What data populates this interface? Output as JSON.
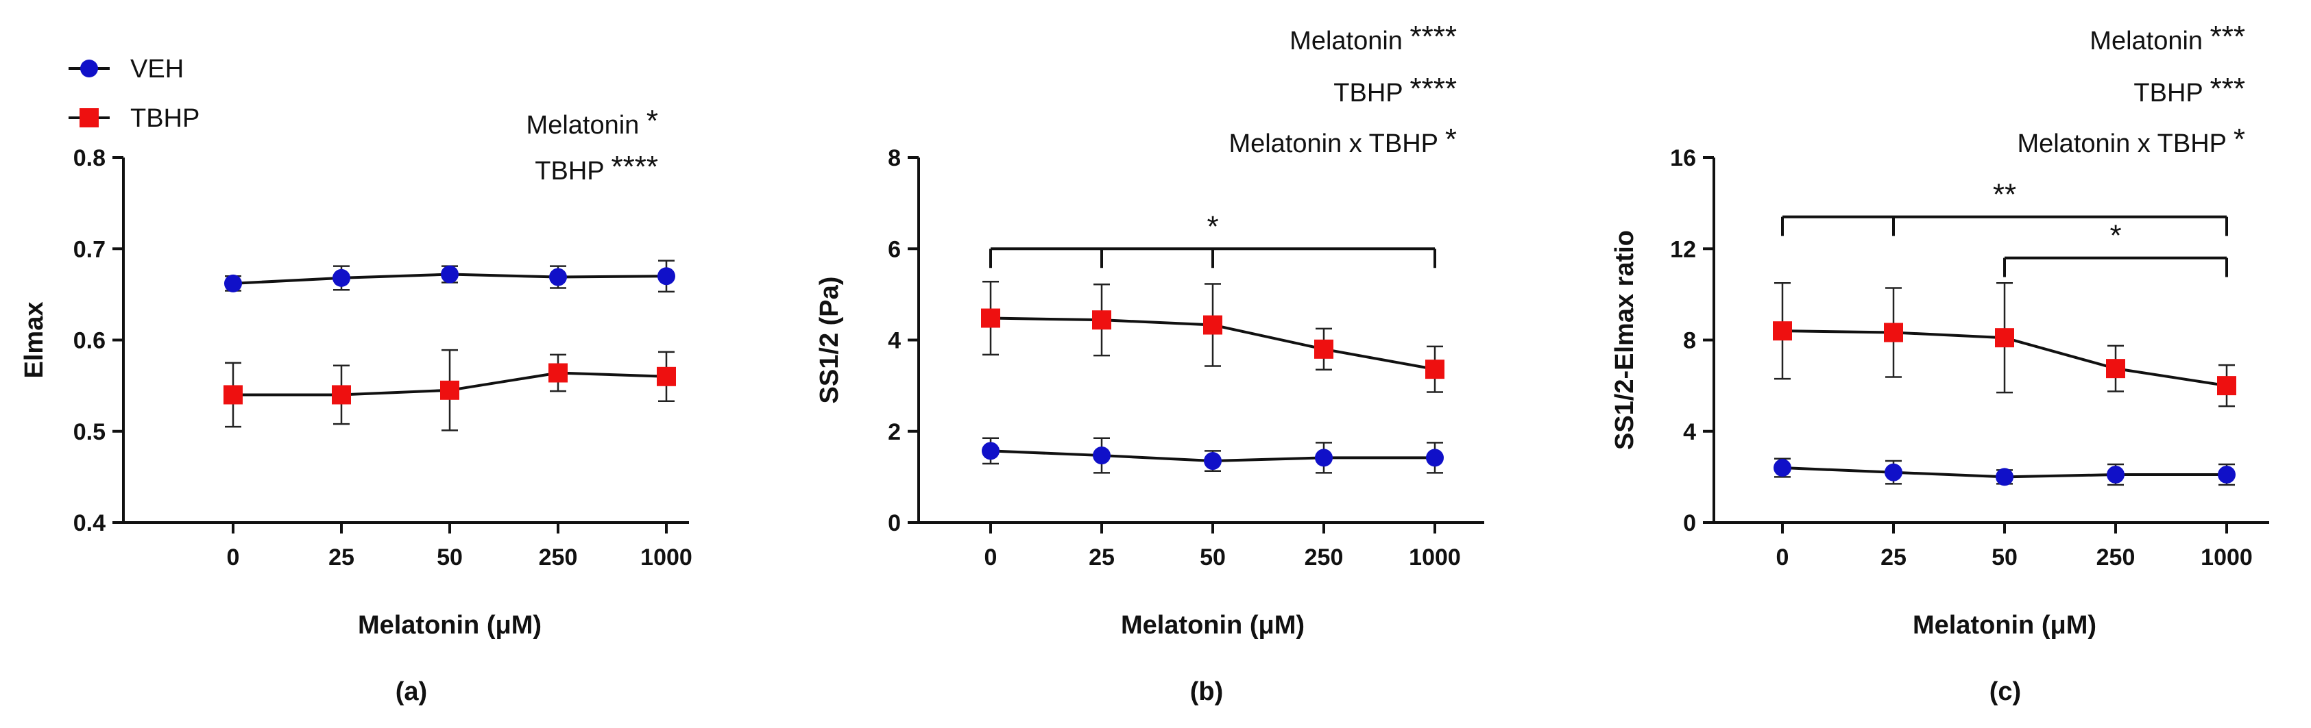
{
  "figure": {
    "legend": [
      {
        "label": "VEH",
        "color": "#1010c8",
        "marker": "circle"
      },
      {
        "label": "TBHP",
        "color": "#ee1010",
        "marker": "square"
      }
    ]
  },
  "chart_data": [
    {
      "type": "line",
      "panel_label": "(a)",
      "xlabel": "Melatonin (μM)",
      "ylabel": "Elmax",
      "categories": [
        "0",
        "25",
        "50",
        "250",
        "1000"
      ],
      "ylim": [
        0.4,
        0.8
      ],
      "yticks": [
        "0.4",
        "0.5",
        "0.6",
        "0.7",
        "0.8"
      ],
      "series": [
        {
          "name": "VEH",
          "values": [
            0.662,
            0.668,
            0.672,
            0.669,
            0.67
          ],
          "errors": [
            0.008,
            0.013,
            0.009,
            0.012,
            0.017
          ]
        },
        {
          "name": "TBHP",
          "values": [
            0.54,
            0.54,
            0.545,
            0.564,
            0.56
          ],
          "errors": [
            0.035,
            0.032,
            0.044,
            0.02,
            0.027
          ]
        }
      ],
      "annotations": [
        {
          "text": "Melatonin",
          "stars": "*"
        },
        {
          "text": "TBHP",
          "stars": "****"
        }
      ],
      "brackets": []
    },
    {
      "type": "line",
      "panel_label": "(b)",
      "xlabel": "Melatonin (μM)",
      "ylabel": "SS1/2 (Pa)",
      "categories": [
        "0",
        "25",
        "50",
        "250",
        "1000"
      ],
      "ylim": [
        0,
        8
      ],
      "yticks": [
        "0",
        "2",
        "4",
        "6",
        "8"
      ],
      "series": [
        {
          "name": "VEH",
          "values": [
            1.57,
            1.47,
            1.35,
            1.42,
            1.42
          ],
          "errors": [
            0.28,
            0.38,
            0.22,
            0.33,
            0.33
          ]
        },
        {
          "name": "TBHP",
          "values": [
            4.48,
            4.44,
            4.33,
            3.8,
            3.36
          ],
          "errors": [
            0.8,
            0.78,
            0.9,
            0.45,
            0.5
          ]
        }
      ],
      "annotations": [
        {
          "text": "Melatonin",
          "stars": "****"
        },
        {
          "text": "TBHP",
          "stars": "****"
        },
        {
          "text": "Melatonin x TBHP",
          "stars": "*"
        }
      ],
      "brackets": [
        {
          "from": 0,
          "to": 4,
          "ticks": [
            0,
            1,
            2,
            4
          ],
          "y": 6.0,
          "stars": "*"
        }
      ]
    },
    {
      "type": "line",
      "panel_label": "(c)",
      "xlabel": "Melatonin (μM)",
      "ylabel": "SS1/2-Elmax ratio",
      "categories": [
        "0",
        "25",
        "50",
        "250",
        "1000"
      ],
      "ylim": [
        0,
        16
      ],
      "yticks": [
        "0",
        "4",
        "8",
        "12",
        "16"
      ],
      "series": [
        {
          "name": "VEH",
          "values": [
            2.4,
            2.2,
            2.0,
            2.1,
            2.1
          ],
          "errors": [
            0.4,
            0.5,
            0.3,
            0.45,
            0.45
          ]
        },
        {
          "name": "TBHP",
          "values": [
            8.4,
            8.33,
            8.1,
            6.75,
            6.0
          ],
          "errors": [
            2.1,
            1.95,
            2.4,
            1.0,
            0.9
          ]
        }
      ],
      "annotations": [
        {
          "text": "Melatonin",
          "stars": "***"
        },
        {
          "text": "TBHP",
          "stars": "***"
        },
        {
          "text": "Melatonin x TBHP",
          "stars": "*"
        }
      ],
      "brackets": [
        {
          "from": 0,
          "to": 4,
          "ticks": [
            0,
            1,
            4
          ],
          "y": 13.4,
          "stars": "**"
        },
        {
          "from": 2,
          "to": 4,
          "ticks": [
            2,
            4
          ],
          "y": 11.6,
          "stars": "*"
        }
      ]
    }
  ]
}
